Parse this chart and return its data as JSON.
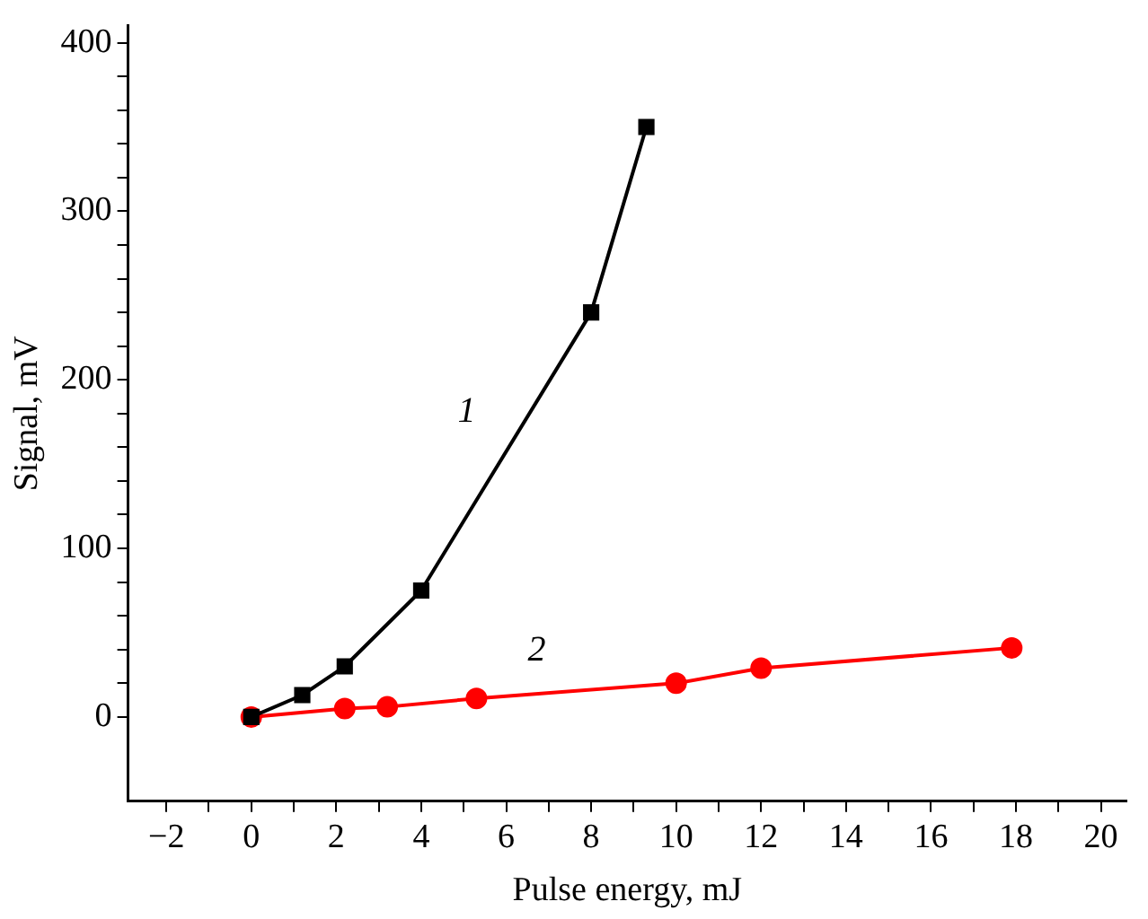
{
  "chart_data": {
    "type": "line",
    "xlabel": "Pulse energy, mJ",
    "ylabel": "Signal, mV",
    "xlim": [
      -2.9,
      20.6
    ],
    "ylim": [
      -50,
      410
    ],
    "xticks": [
      {
        "value": -2,
        "label": "−2"
      },
      {
        "value": -1,
        "label": null
      },
      0,
      {
        "value": 1,
        "label": null
      },
      2,
      {
        "value": 3,
        "label": null
      },
      4,
      {
        "value": 5,
        "label": null
      },
      6,
      {
        "value": 7,
        "label": null
      },
      8,
      {
        "value": 9,
        "label": null
      },
      10,
      {
        "value": 11,
        "label": null
      },
      12,
      {
        "value": 13,
        "label": null
      },
      14,
      {
        "value": 15,
        "label": null
      },
      16,
      {
        "value": 17,
        "label": null
      },
      18,
      {
        "value": 19,
        "label": null
      },
      20
    ],
    "yticks": [
      0,
      {
        "value": 20,
        "label": null
      },
      {
        "value": 40,
        "label": null
      },
      {
        "value": 60,
        "label": null
      },
      {
        "value": 80,
        "label": null
      },
      100,
      {
        "value": 120,
        "label": null
      },
      {
        "value": 140,
        "label": null
      },
      {
        "value": 160,
        "label": null
      },
      {
        "value": 180,
        "label": null
      },
      200,
      {
        "value": 220,
        "label": null
      },
      {
        "value": 240,
        "label": null
      },
      {
        "value": 260,
        "label": null
      },
      {
        "value": 280,
        "label": null
      },
      300,
      {
        "value": 320,
        "label": null
      },
      {
        "value": 340,
        "label": null
      },
      {
        "value": 360,
        "label": null
      },
      {
        "value": 380,
        "label": null
      },
      400
    ],
    "grid": false,
    "legend": false,
    "series": [
      {
        "name": "1",
        "color": "#000000",
        "marker": "square",
        "x": [
          0,
          1.2,
          2.2,
          4,
          8,
          9.3
        ],
        "values": [
          0,
          13,
          30,
          75,
          240,
          350
        ]
      },
      {
        "name": "2",
        "color": "#ff0000",
        "marker": "circle",
        "x": [
          0,
          2.2,
          3.2,
          5.3,
          10,
          12,
          17.9
        ],
        "values": [
          0,
          5,
          6,
          11,
          20,
          29,
          41
        ]
      }
    ]
  }
}
